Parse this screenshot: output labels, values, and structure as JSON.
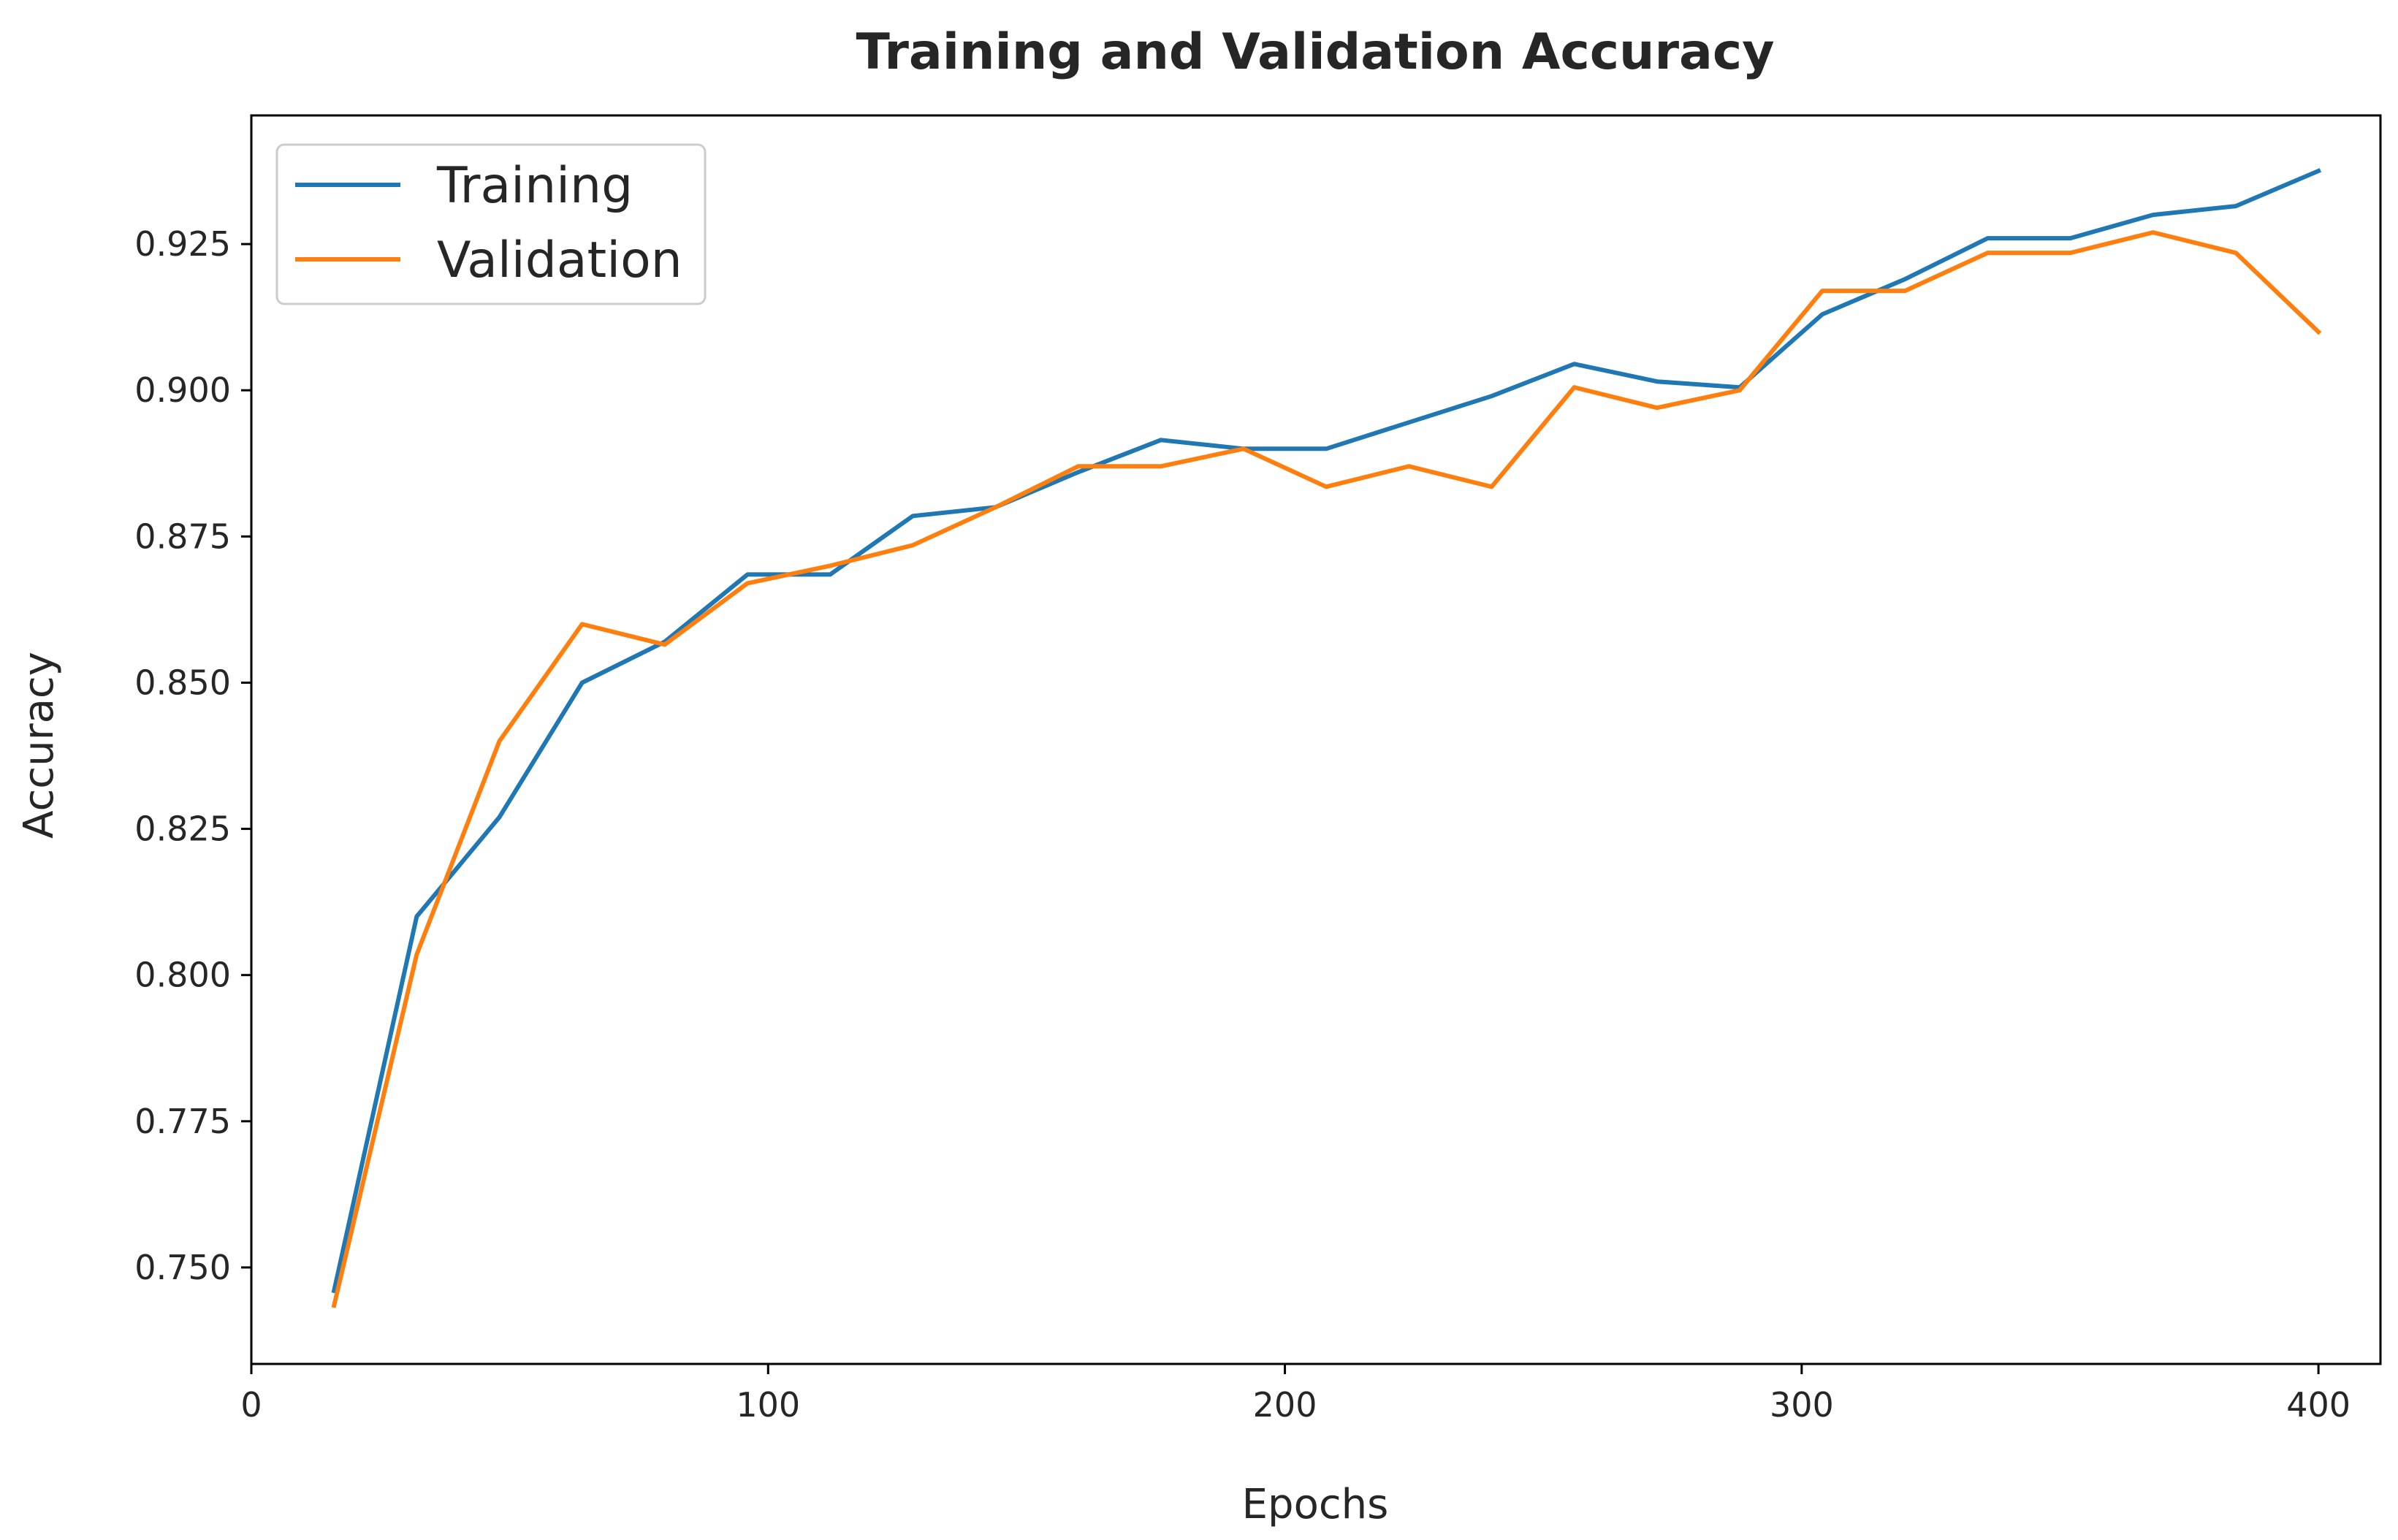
{
  "chart_data": {
    "type": "line",
    "title": "Training and Validation Accuracy",
    "xlabel": "Epochs",
    "ylabel": "Accuracy",
    "xlim": [
      0,
      412
    ],
    "ylim": [
      0.7335,
      0.947
    ],
    "x_ticks": [
      0,
      100,
      200,
      300,
      400
    ],
    "x_tick_labels": [
      "0",
      "100",
      "200",
      "300",
      "400"
    ],
    "y_ticks": [
      0.75,
      0.775,
      0.8,
      0.825,
      0.85,
      0.875,
      0.9,
      0.925
    ],
    "y_tick_labels": [
      "0.750",
      "0.775",
      "0.800",
      "0.825",
      "0.850",
      "0.875",
      "0.900",
      "0.925"
    ],
    "grid": false,
    "legend_position": "top-left",
    "x": [
      16,
      32,
      48,
      64,
      80,
      96,
      112,
      128,
      144,
      160,
      176,
      192,
      208,
      224,
      240,
      256,
      272,
      288,
      304,
      320,
      336,
      352,
      368,
      384,
      400
    ],
    "series": [
      {
        "name": "Training",
        "color": "#1f77b4",
        "values": [
          0.746,
          0.81,
          0.827,
          0.85,
          0.857,
          0.8685,
          0.8685,
          0.8785,
          0.88,
          0.886,
          0.8915,
          0.89,
          0.89,
          0.8945,
          0.899,
          0.9045,
          0.9015,
          0.9005,
          0.913,
          0.919,
          0.926,
          0.926,
          0.93,
          0.9315,
          0.9375
        ]
      },
      {
        "name": "Validation",
        "color": "#ff7f0e",
        "values": [
          0.7435,
          0.8035,
          0.84,
          0.86,
          0.8565,
          0.867,
          0.87,
          0.8735,
          0.88,
          0.887,
          0.887,
          0.89,
          0.8835,
          0.887,
          0.8835,
          0.9005,
          0.897,
          0.9,
          0.917,
          0.917,
          0.9235,
          0.9235,
          0.927,
          0.9235,
          0.91
        ]
      }
    ]
  }
}
